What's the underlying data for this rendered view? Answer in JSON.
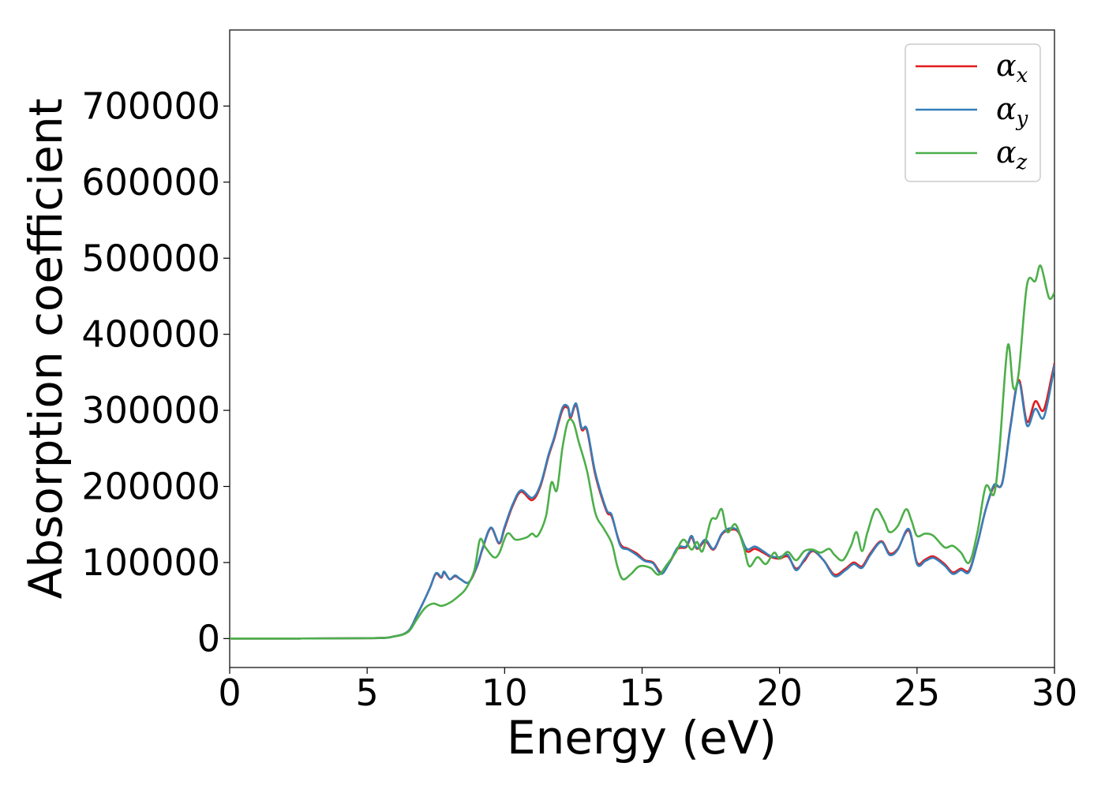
{
  "chart_data": {
    "type": "line",
    "xlabel": "Energy (eV)",
    "ylabel": "Absorption coefficient",
    "xlim": [
      0,
      30
    ],
    "ylim": [
      -38000,
      800000
    ],
    "xticks": [
      0,
      5,
      10,
      15,
      20,
      25,
      30
    ],
    "xtick_labels": [
      "0",
      "5",
      "10",
      "15",
      "20",
      "25",
      "30"
    ],
    "yticks": [
      0,
      100000,
      200000,
      300000,
      400000,
      500000,
      600000,
      700000
    ],
    "ytick_labels": [
      "0",
      "100000",
      "200000",
      "300000",
      "400000",
      "500000",
      "600000",
      "700000"
    ],
    "grid": false,
    "legend_position": "top-right",
    "series": [
      {
        "name": "αx",
        "symbol": "α",
        "subscript": "x",
        "color": "#e41a1c",
        "points": [
          [
            0,
            0
          ],
          [
            5,
            500
          ],
          [
            6,
            3000
          ],
          [
            6.5,
            10000
          ],
          [
            6.8,
            30000
          ],
          [
            7.1,
            52000
          ],
          [
            7.3,
            68000
          ],
          [
            7.5,
            85000
          ],
          [
            7.7,
            80000
          ],
          [
            7.8,
            87000
          ],
          [
            8.0,
            78000
          ],
          [
            8.2,
            82000
          ],
          [
            8.4,
            78000
          ],
          [
            8.7,
            74000
          ],
          [
            9.0,
            95000
          ],
          [
            9.2,
            118000
          ],
          [
            9.5,
            145000
          ],
          [
            9.8,
            125000
          ],
          [
            10.0,
            145000
          ],
          [
            10.3,
            175000
          ],
          [
            10.6,
            193000
          ],
          [
            11.0,
            182000
          ],
          [
            11.3,
            200000
          ],
          [
            11.6,
            240000
          ],
          [
            11.8,
            262000
          ],
          [
            12.1,
            300000
          ],
          [
            12.3,
            303000
          ],
          [
            12.4,
            290000
          ],
          [
            12.6,
            307000
          ],
          [
            12.8,
            275000
          ],
          [
            13.0,
            273000
          ],
          [
            13.3,
            215000
          ],
          [
            13.7,
            168000
          ],
          [
            13.9,
            160000
          ],
          [
            14.2,
            125000
          ],
          [
            14.5,
            118000
          ],
          [
            14.8,
            112000
          ],
          [
            15.1,
            103000
          ],
          [
            15.4,
            100000
          ],
          [
            15.7,
            87000
          ],
          [
            16.0,
            100000
          ],
          [
            16.3,
            118000
          ],
          [
            16.6,
            120000
          ],
          [
            16.8,
            133000
          ],
          [
            17.0,
            118000
          ],
          [
            17.3,
            128000
          ],
          [
            17.6,
            117000
          ],
          [
            17.9,
            137000
          ],
          [
            18.2,
            143000
          ],
          [
            18.5,
            140000
          ],
          [
            18.8,
            115000
          ],
          [
            19.1,
            118000
          ],
          [
            19.4,
            113000
          ],
          [
            19.7,
            107000
          ],
          [
            20.0,
            105000
          ],
          [
            20.3,
            108000
          ],
          [
            20.6,
            92000
          ],
          [
            20.9,
            102000
          ],
          [
            21.2,
            115000
          ],
          [
            21.6,
            103000
          ],
          [
            22.0,
            84000
          ],
          [
            22.4,
            92000
          ],
          [
            22.7,
            100000
          ],
          [
            23.0,
            95000
          ],
          [
            23.3,
            112000
          ],
          [
            23.7,
            128000
          ],
          [
            24.0,
            112000
          ],
          [
            24.3,
            118000
          ],
          [
            24.7,
            142000
          ],
          [
            25.0,
            100000
          ],
          [
            25.3,
            104000
          ],
          [
            25.6,
            108000
          ],
          [
            26.0,
            98000
          ],
          [
            26.3,
            87000
          ],
          [
            26.6,
            92000
          ],
          [
            26.9,
            90000
          ],
          [
            27.2,
            125000
          ],
          [
            27.5,
            170000
          ],
          [
            27.8,
            200000
          ],
          [
            28.1,
            205000
          ],
          [
            28.4,
            280000
          ],
          [
            28.7,
            340000
          ],
          [
            29.0,
            285000
          ],
          [
            29.3,
            312000
          ],
          [
            29.6,
            300000
          ],
          [
            29.9,
            345000
          ],
          [
            30.0,
            362000
          ]
        ]
      },
      {
        "name": "αy",
        "symbol": "α",
        "subscript": "y",
        "color": "#377eb8",
        "points": [
          [
            0,
            0
          ],
          [
            5,
            500
          ],
          [
            6,
            3000
          ],
          [
            6.5,
            10000
          ],
          [
            6.8,
            30000
          ],
          [
            7.1,
            52000
          ],
          [
            7.3,
            68000
          ],
          [
            7.5,
            86000
          ],
          [
            7.7,
            81000
          ],
          [
            7.8,
            88000
          ],
          [
            8.0,
            78000
          ],
          [
            8.2,
            83000
          ],
          [
            8.4,
            78000
          ],
          [
            8.7,
            74000
          ],
          [
            9.0,
            96000
          ],
          [
            9.2,
            119000
          ],
          [
            9.5,
            146000
          ],
          [
            9.8,
            126000
          ],
          [
            10.0,
            147000
          ],
          [
            10.3,
            177000
          ],
          [
            10.6,
            195000
          ],
          [
            11.0,
            185000
          ],
          [
            11.3,
            202000
          ],
          [
            11.6,
            242000
          ],
          [
            11.8,
            264000
          ],
          [
            12.1,
            303000
          ],
          [
            12.3,
            305000
          ],
          [
            12.4,
            292000
          ],
          [
            12.6,
            309000
          ],
          [
            12.8,
            277000
          ],
          [
            13.0,
            275000
          ],
          [
            13.3,
            218000
          ],
          [
            13.7,
            170000
          ],
          [
            13.9,
            162000
          ],
          [
            14.2,
            123000
          ],
          [
            14.5,
            117000
          ],
          [
            14.8,
            110000
          ],
          [
            15.1,
            102000
          ],
          [
            15.4,
            99000
          ],
          [
            15.7,
            85000
          ],
          [
            16.0,
            100000
          ],
          [
            16.3,
            120000
          ],
          [
            16.6,
            121000
          ],
          [
            16.8,
            135000
          ],
          [
            17.0,
            119000
          ],
          [
            17.3,
            130000
          ],
          [
            17.6,
            118000
          ],
          [
            17.9,
            138000
          ],
          [
            18.2,
            145000
          ],
          [
            18.5,
            141000
          ],
          [
            18.8,
            118000
          ],
          [
            19.1,
            121000
          ],
          [
            19.4,
            115000
          ],
          [
            19.7,
            108000
          ],
          [
            20.0,
            107000
          ],
          [
            20.3,
            110000
          ],
          [
            20.6,
            90000
          ],
          [
            20.9,
            104000
          ],
          [
            21.2,
            116000
          ],
          [
            21.6,
            103000
          ],
          [
            22.0,
            82000
          ],
          [
            22.4,
            90000
          ],
          [
            22.7,
            98000
          ],
          [
            23.0,
            93000
          ],
          [
            23.3,
            110000
          ],
          [
            23.7,
            127000
          ],
          [
            24.0,
            110000
          ],
          [
            24.3,
            117000
          ],
          [
            24.7,
            144000
          ],
          [
            25.0,
            98000
          ],
          [
            25.3,
            102000
          ],
          [
            25.6,
            106000
          ],
          [
            26.0,
            96000
          ],
          [
            26.3,
            85000
          ],
          [
            26.6,
            90000
          ],
          [
            26.9,
            88000
          ],
          [
            27.2,
            125000
          ],
          [
            27.5,
            170000
          ],
          [
            27.8,
            202000
          ],
          [
            28.1,
            204000
          ],
          [
            28.4,
            278000
          ],
          [
            28.7,
            337000
          ],
          [
            29.0,
            280000
          ],
          [
            29.3,
            302000
          ],
          [
            29.6,
            290000
          ],
          [
            29.9,
            338000
          ],
          [
            30.0,
            360000
          ]
        ]
      },
      {
        "name": "αz",
        "symbol": "α",
        "subscript": "z",
        "color": "#4daf4a",
        "points": [
          [
            0,
            0
          ],
          [
            5,
            500
          ],
          [
            6,
            3000
          ],
          [
            6.5,
            9000
          ],
          [
            6.8,
            25000
          ],
          [
            7.1,
            40000
          ],
          [
            7.4,
            46000
          ],
          [
            7.7,
            43000
          ],
          [
            8.0,
            47000
          ],
          [
            8.3,
            55000
          ],
          [
            8.6,
            66000
          ],
          [
            8.9,
            90000
          ],
          [
            9.1,
            130000
          ],
          [
            9.3,
            120000
          ],
          [
            9.6,
            107000
          ],
          [
            9.8,
            112000
          ],
          [
            10.1,
            138000
          ],
          [
            10.4,
            130000
          ],
          [
            10.8,
            133000
          ],
          [
            11.0,
            138000
          ],
          [
            11.2,
            135000
          ],
          [
            11.5,
            160000
          ],
          [
            11.7,
            205000
          ],
          [
            11.9,
            195000
          ],
          [
            12.1,
            250000
          ],
          [
            12.3,
            285000
          ],
          [
            12.5,
            284000
          ],
          [
            12.7,
            258000
          ],
          [
            13.0,
            220000
          ],
          [
            13.3,
            165000
          ],
          [
            13.6,
            145000
          ],
          [
            13.9,
            125000
          ],
          [
            14.1,
            95000
          ],
          [
            14.3,
            78000
          ],
          [
            14.6,
            85000
          ],
          [
            14.9,
            95000
          ],
          [
            15.3,
            93000
          ],
          [
            15.6,
            84000
          ],
          [
            15.9,
            97000
          ],
          [
            16.2,
            112000
          ],
          [
            16.5,
            130000
          ],
          [
            16.8,
            117000
          ],
          [
            17.0,
            127000
          ],
          [
            17.2,
            115000
          ],
          [
            17.5,
            155000
          ],
          [
            17.7,
            158000
          ],
          [
            17.9,
            170000
          ],
          [
            18.1,
            140000
          ],
          [
            18.4,
            150000
          ],
          [
            18.7,
            120000
          ],
          [
            18.9,
            95000
          ],
          [
            19.2,
            107000
          ],
          [
            19.5,
            98000
          ],
          [
            19.8,
            113000
          ],
          [
            20.0,
            105000
          ],
          [
            20.3,
            114000
          ],
          [
            20.6,
            103000
          ],
          [
            20.9,
            115000
          ],
          [
            21.2,
            117000
          ],
          [
            21.5,
            113000
          ],
          [
            21.8,
            118000
          ],
          [
            22.0,
            110000
          ],
          [
            22.3,
            103000
          ],
          [
            22.6,
            122000
          ],
          [
            22.8,
            140000
          ],
          [
            23.0,
            115000
          ],
          [
            23.2,
            140000
          ],
          [
            23.5,
            170000
          ],
          [
            23.8,
            155000
          ],
          [
            24.0,
            140000
          ],
          [
            24.3,
            148000
          ],
          [
            24.6,
            170000
          ],
          [
            24.8,
            155000
          ],
          [
            25.0,
            135000
          ],
          [
            25.3,
            138000
          ],
          [
            25.6,
            135000
          ],
          [
            26.0,
            120000
          ],
          [
            26.3,
            122000
          ],
          [
            26.6,
            113000
          ],
          [
            26.9,
            100000
          ],
          [
            27.2,
            140000
          ],
          [
            27.5,
            200000
          ],
          [
            27.8,
            190000
          ],
          [
            28.0,
            250000
          ],
          [
            28.3,
            385000
          ],
          [
            28.5,
            330000
          ],
          [
            28.7,
            350000
          ],
          [
            29.0,
            465000
          ],
          [
            29.3,
            470000
          ],
          [
            29.5,
            490000
          ],
          [
            29.8,
            448000
          ],
          [
            30.0,
            455000
          ]
        ]
      }
    ]
  }
}
